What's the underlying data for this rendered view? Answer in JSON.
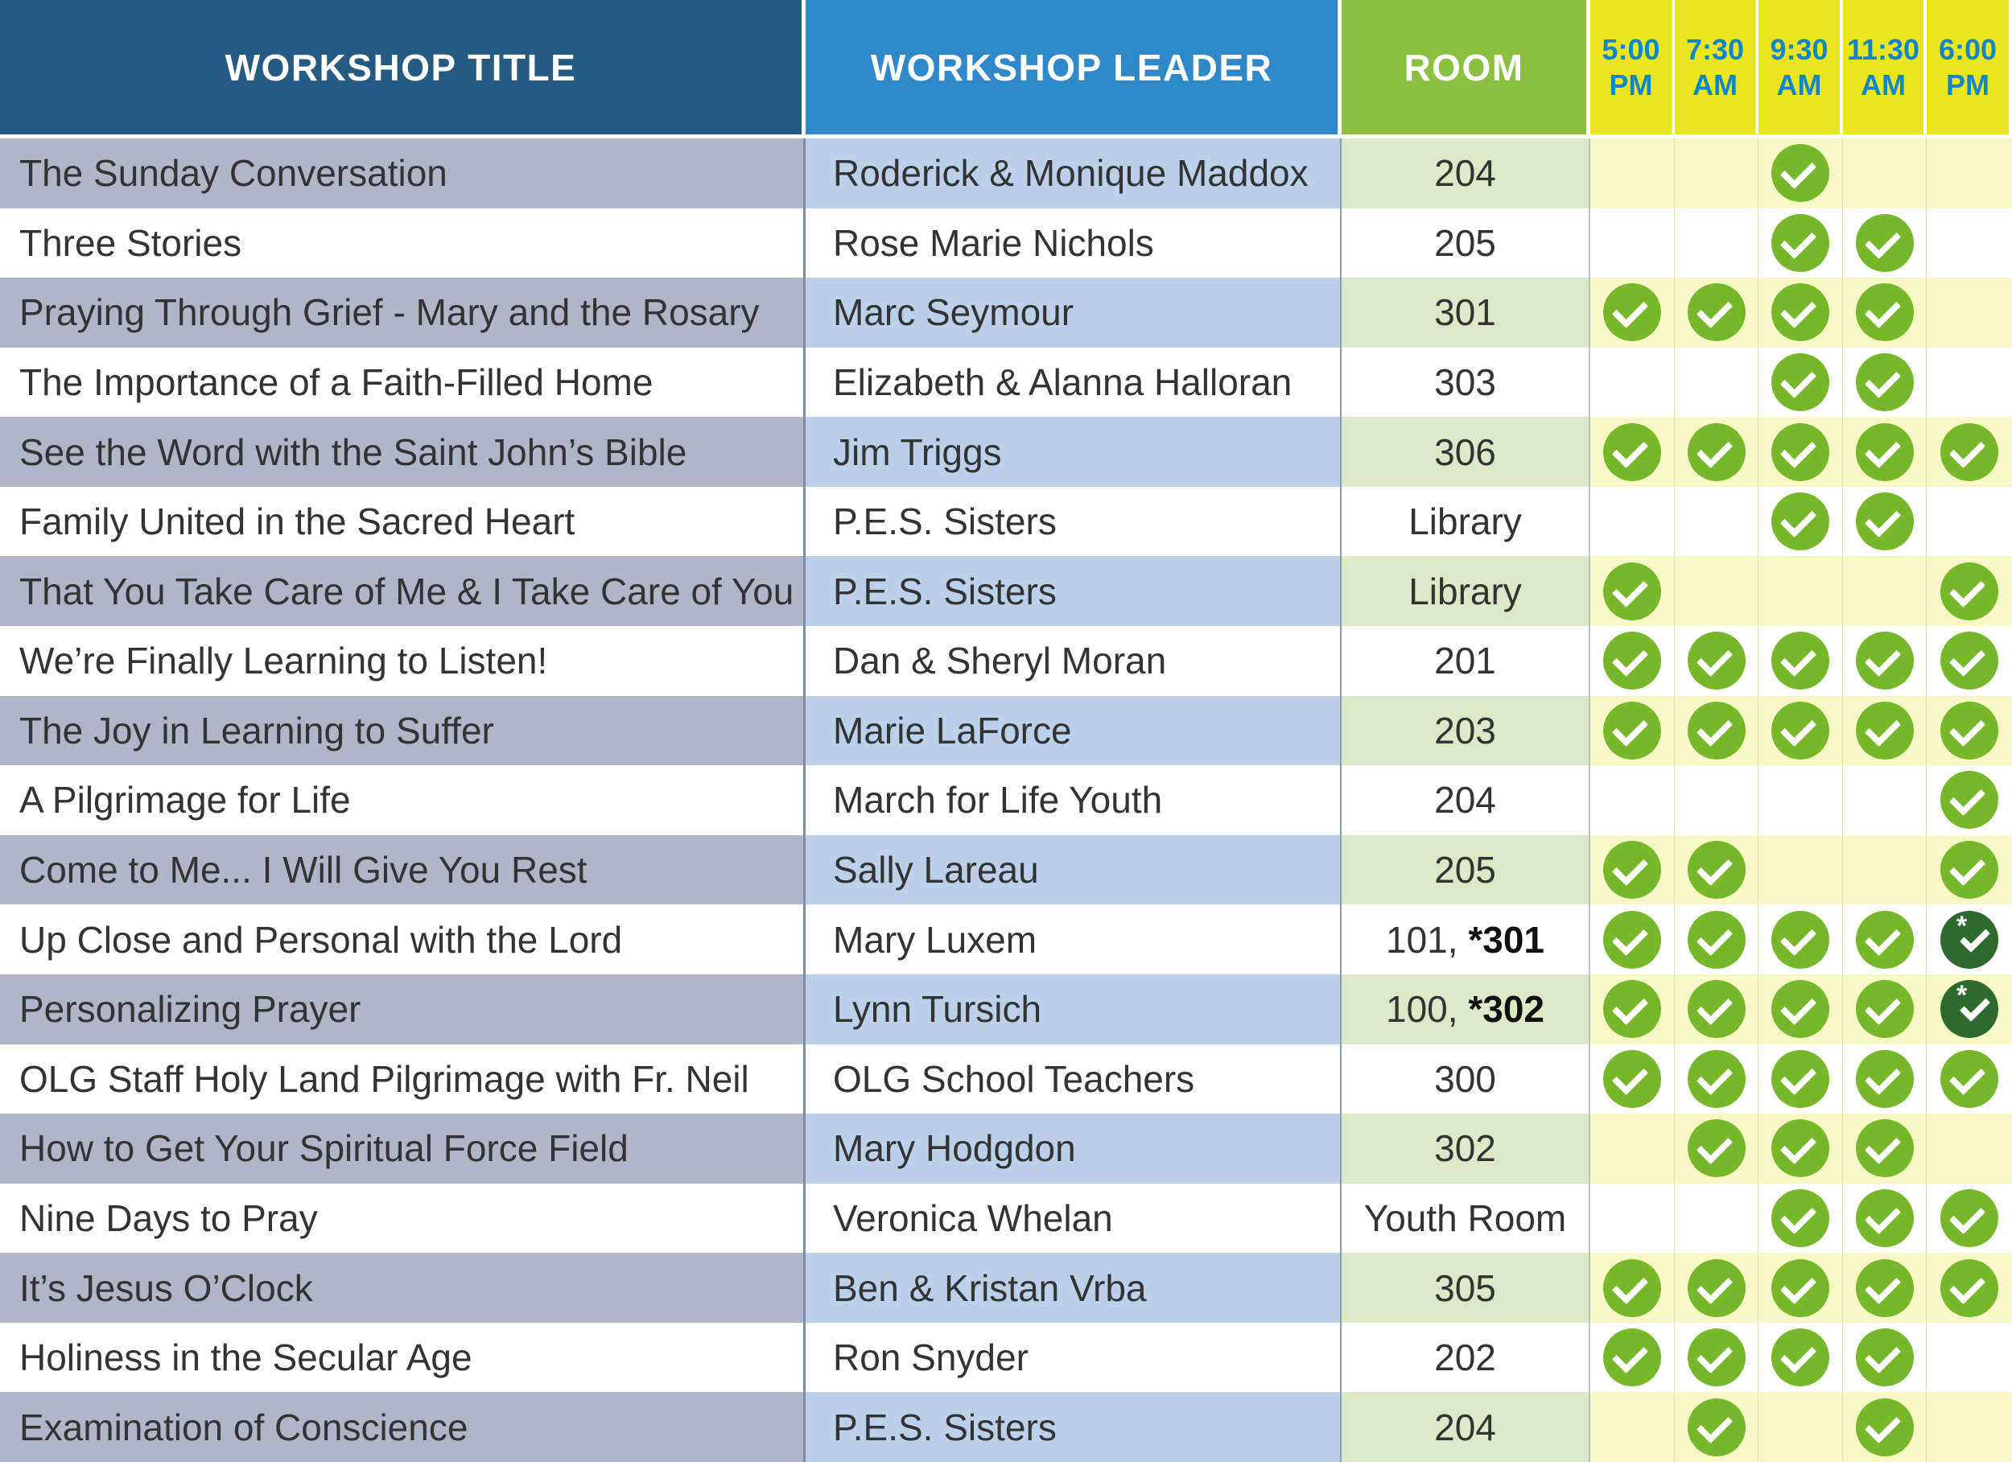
{
  "headers": {
    "title": "WORKSHOP TITLE",
    "leader": "WORKSHOP LEADER",
    "room": "ROOM",
    "times": [
      "5:00 PM",
      "7:30 AM",
      "9:30 AM",
      "11:30 AM",
      "6:00 PM"
    ]
  },
  "colors": {
    "header_title": "#255a82",
    "header_leader": "#2f88c8",
    "header_room": "#8cbe3f",
    "header_time": "#e9e61f",
    "check": "#76b82a",
    "check_special": "#2e6a2e"
  },
  "legend_icons": {
    "check": "check-circle-icon",
    "special": "asterisk-check-icon"
  },
  "rows": [
    {
      "title": "The Sunday Conversation",
      "leader": "Roderick & Monique Maddox",
      "room": "204",
      "room_bold": "",
      "slots": [
        0,
        0,
        1,
        0,
        0
      ]
    },
    {
      "title": "Three Stories",
      "leader": "Rose Marie Nichols",
      "room": "205",
      "room_bold": "",
      "slots": [
        0,
        0,
        1,
        1,
        0
      ]
    },
    {
      "title": "Praying Through Grief - Mary and the Rosary",
      "leader": "Marc Seymour",
      "room": "301",
      "room_bold": "",
      "slots": [
        1,
        1,
        1,
        1,
        0
      ]
    },
    {
      "title": "The Importance of a Faith-Filled Home",
      "leader": "Elizabeth & Alanna Halloran",
      "room": "303",
      "room_bold": "",
      "slots": [
        0,
        0,
        1,
        1,
        0
      ]
    },
    {
      "title": "See the Word with the Saint John’s Bible",
      "leader": "Jim Triggs",
      "room": "306",
      "room_bold": "",
      "slots": [
        1,
        1,
        1,
        1,
        1
      ]
    },
    {
      "title": "Family United in the Sacred Heart",
      "leader": "P.E.S. Sisters",
      "room": "Library",
      "room_bold": "",
      "slots": [
        0,
        0,
        1,
        1,
        0
      ]
    },
    {
      "title": "That You Take Care of Me & I Take Care of You",
      "leader": "P.E.S. Sisters",
      "room": "Library",
      "room_bold": "",
      "slots": [
        1,
        0,
        0,
        0,
        1
      ]
    },
    {
      "title": "We’re Finally Learning to Listen!",
      "leader": "Dan & Sheryl Moran",
      "room": "201",
      "room_bold": "",
      "slots": [
        1,
        1,
        1,
        1,
        1
      ]
    },
    {
      "title": "The Joy in Learning to Suffer",
      "leader": "Marie LaForce",
      "room": "203",
      "room_bold": "",
      "slots": [
        1,
        1,
        1,
        1,
        1
      ]
    },
    {
      "title": "A Pilgrimage for Life",
      "leader": "March for Life Youth",
      "room": "204",
      "room_bold": "",
      "slots": [
        0,
        0,
        0,
        0,
        1
      ]
    },
    {
      "title": "Come to Me... I Will Give You Rest",
      "leader": "Sally Lareau",
      "room": "205",
      "room_bold": "",
      "slots": [
        1,
        1,
        0,
        0,
        1
      ]
    },
    {
      "title": "Up Close and Personal with the Lord",
      "leader": "Mary Luxem",
      "room": "101, ",
      "room_bold": "*301",
      "slots": [
        1,
        1,
        1,
        1,
        2
      ]
    },
    {
      "title": "Personalizing Prayer",
      "leader": "Lynn Tursich",
      "room": "100, ",
      "room_bold": "*302",
      "slots": [
        1,
        1,
        1,
        1,
        2
      ]
    },
    {
      "title": "OLG Staff Holy Land Pilgrimage with Fr. Neil",
      "leader": "OLG School Teachers",
      "room": "300",
      "room_bold": "",
      "slots": [
        1,
        1,
        1,
        1,
        1
      ]
    },
    {
      "title": "How to Get Your Spiritual Force Field",
      "leader": "Mary Hodgdon",
      "room": "302",
      "room_bold": "",
      "slots": [
        0,
        1,
        1,
        1,
        0
      ]
    },
    {
      "title": "Nine Days to Pray",
      "leader": "Veronica Whelan",
      "room": "Youth Room",
      "room_bold": "",
      "slots": [
        0,
        0,
        1,
        1,
        1
      ]
    },
    {
      "title": "It’s Jesus O’Clock",
      "leader": "Ben & Kristan Vrba",
      "room": "305",
      "room_bold": "",
      "slots": [
        1,
        1,
        1,
        1,
        1
      ]
    },
    {
      "title": "Holiness in the Secular Age",
      "leader": "Ron Snyder",
      "room": "202",
      "room_bold": "",
      "slots": [
        1,
        1,
        1,
        1,
        0
      ]
    },
    {
      "title": "Examination of Conscience",
      "leader": "P.E.S. Sisters",
      "room": "204",
      "room_bold": "",
      "slots": [
        0,
        1,
        0,
        1,
        0
      ]
    }
  ]
}
